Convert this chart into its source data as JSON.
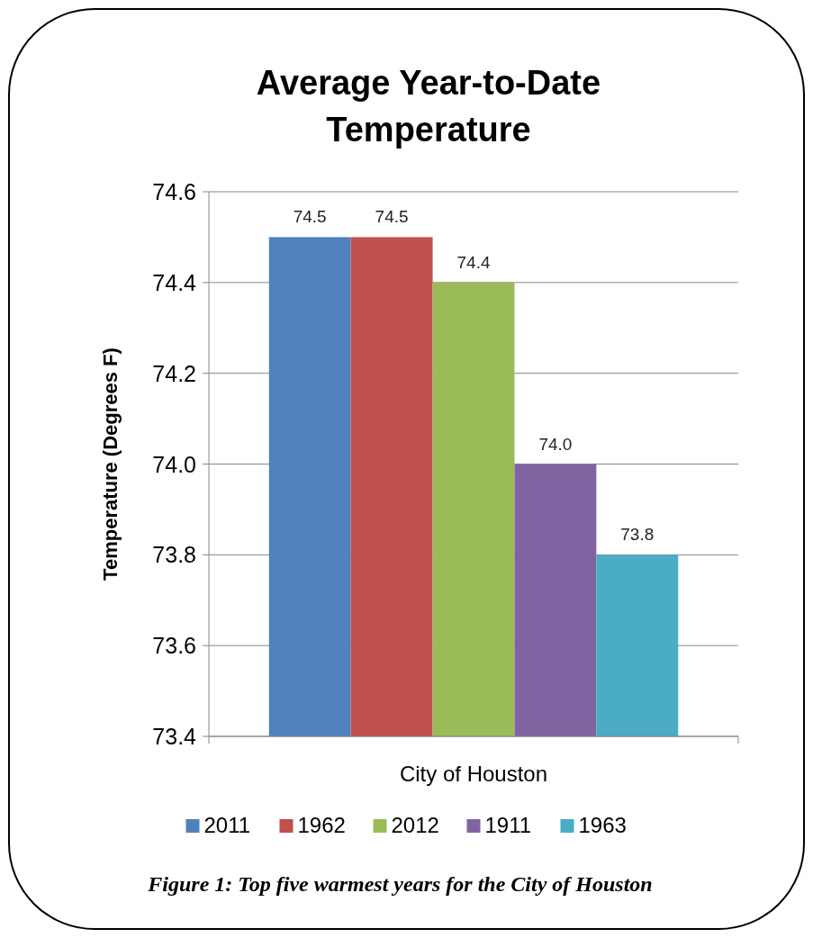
{
  "chart_data": {
    "type": "bar",
    "title": "Average Year-to-Date Temperature",
    "ylabel": "Temperature (Degrees F)",
    "xlabel": "City of Houston",
    "categories": [
      null
    ],
    "series": [
      {
        "name": "2011",
        "color": "#4f81bd",
        "values": [
          74.5
        ],
        "value_labels": [
          "74.5"
        ]
      },
      {
        "name": "1962",
        "color": "#c0504d",
        "values": [
          74.5
        ],
        "value_labels": [
          "74.5"
        ]
      },
      {
        "name": "2012",
        "color": "#9bbb59",
        "values": [
          74.4
        ],
        "value_labels": [
          "74.4"
        ]
      },
      {
        "name": "1911",
        "color": "#8064a2",
        "values": [
          74.0
        ],
        "value_labels": [
          "74.0"
        ]
      },
      {
        "name": "1963",
        "color": "#4bacc6",
        "values": [
          73.8
        ],
        "value_labels": [
          "73.8"
        ]
      }
    ],
    "ylim": [
      73.4,
      74.6
    ],
    "yticks": [
      73.4,
      73.6,
      73.8,
      {
        "value": 74,
        "label": "74.0"
      },
      74.2,
      74.4,
      74.6
    ],
    "grid": "y",
    "legend": "bottom",
    "annotations": [
      "Figure 1: Top five warmest years for the City of Houston"
    ]
  }
}
